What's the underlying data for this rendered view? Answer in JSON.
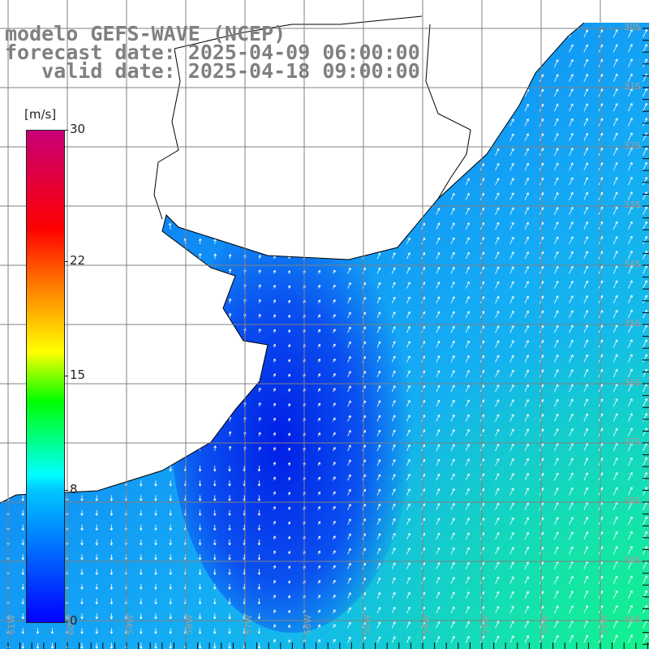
{
  "title": {
    "line1": "modelo GEFS-WAVE (NCEP)",
    "line2": "forecast date: 2025-04-09 06:00:00",
    "line3": "   valid date: 2025-04-18 09:00:00"
  },
  "colorbar": {
    "unit": "[m/s]",
    "ticks": [
      "30",
      "22",
      "15",
      "8",
      "0"
    ],
    "tick_values": [
      30,
      22,
      15,
      8,
      0
    ],
    "range": [
      0,
      30
    ]
  },
  "map": {
    "lat_labels": [
      "30S",
      "31S",
      "32S",
      "33S",
      "34S",
      "35S",
      "36S",
      "37S",
      "38S",
      "39S",
      "40S"
    ],
    "lon_labels": [
      "61W",
      "60W",
      "59W",
      "58W",
      "57W",
      "56W",
      "55W",
      "54W",
      "53W",
      "52W",
      "51W"
    ],
    "colors": {
      "land": "#ffffff",
      "grid": "#808080",
      "coast": "#000000",
      "arrow": "#ffffff"
    }
  }
}
